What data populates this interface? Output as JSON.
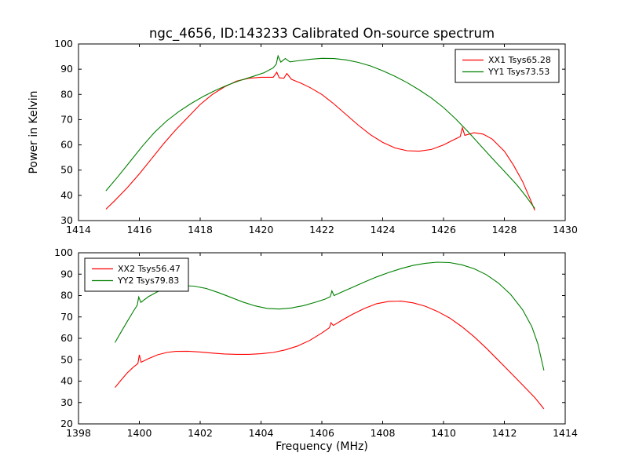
{
  "chart_data": [
    {
      "type": "line",
      "title": "ngc_4656, ID:143233 Calibrated On-source spectrum",
      "xlabel": "",
      "ylabel": "Power in Kelvin",
      "xlim": [
        1414,
        1430
      ],
      "ylim": [
        30,
        100
      ],
      "xticks": [
        1414,
        1416,
        1418,
        1420,
        1422,
        1424,
        1426,
        1428,
        1430
      ],
      "yticks": [
        30,
        40,
        50,
        60,
        70,
        80,
        90,
        100
      ],
      "grid": false,
      "legend_position": "upper right",
      "series": [
        {
          "name": "XX1 Tsys65.28",
          "color": "#ff0000",
          "points": [
            [
              1414.9,
              34.5
            ],
            [
              1415.2,
              38.0
            ],
            [
              1415.6,
              43.0
            ],
            [
              1416.0,
              48.5
            ],
            [
              1416.4,
              54.5
            ],
            [
              1416.8,
              60.5
            ],
            [
              1417.2,
              66.0
            ],
            [
              1417.6,
              71.0
            ],
            [
              1418.0,
              76.0
            ],
            [
              1418.4,
              80.0
            ],
            [
              1418.8,
              83.0
            ],
            [
              1419.2,
              85.3
            ],
            [
              1419.6,
              86.4
            ],
            [
              1420.0,
              86.8
            ],
            [
              1420.4,
              86.8
            ],
            [
              1420.52,
              88.8
            ],
            [
              1420.6,
              86.6
            ],
            [
              1420.75,
              86.4
            ],
            [
              1420.85,
              88.3
            ],
            [
              1421.0,
              86.0
            ],
            [
              1421.3,
              84.5
            ],
            [
              1421.6,
              82.8
            ],
            [
              1422.0,
              80.0
            ],
            [
              1422.4,
              76.2
            ],
            [
              1422.8,
              72.0
            ],
            [
              1423.2,
              67.8
            ],
            [
              1423.6,
              64.0
            ],
            [
              1424.0,
              61.0
            ],
            [
              1424.4,
              58.8
            ],
            [
              1424.8,
              57.7
            ],
            [
              1425.2,
              57.5
            ],
            [
              1425.6,
              58.2
            ],
            [
              1426.0,
              60.0
            ],
            [
              1426.3,
              61.8
            ],
            [
              1426.55,
              63.3
            ],
            [
              1426.62,
              66.8
            ],
            [
              1426.7,
              63.8
            ],
            [
              1427.0,
              64.8
            ],
            [
              1427.3,
              64.3
            ],
            [
              1427.6,
              62.3
            ],
            [
              1428.0,
              57.5
            ],
            [
              1428.3,
              52.0
            ],
            [
              1428.6,
              45.5
            ],
            [
              1428.85,
              38.5
            ],
            [
              1429.0,
              34.0
            ]
          ]
        },
        {
          "name": "YY1 Tsys73.53",
          "color": "#008000",
          "points": [
            [
              1414.9,
              41.8
            ],
            [
              1415.3,
              47.5
            ],
            [
              1415.7,
              53.5
            ],
            [
              1416.1,
              59.5
            ],
            [
              1416.5,
              65.0
            ],
            [
              1416.9,
              69.5
            ],
            [
              1417.3,
              73.2
            ],
            [
              1417.7,
              76.4
            ],
            [
              1418.1,
              79.2
            ],
            [
              1418.5,
              81.6
            ],
            [
              1418.9,
              83.7
            ],
            [
              1419.3,
              85.5
            ],
            [
              1419.7,
              87.0
            ],
            [
              1420.1,
              88.6
            ],
            [
              1420.4,
              90.5
            ],
            [
              1420.5,
              92.0
            ],
            [
              1420.56,
              95.3
            ],
            [
              1420.65,
              92.8
            ],
            [
              1420.8,
              94.2
            ],
            [
              1420.95,
              92.9
            ],
            [
              1421.2,
              93.3
            ],
            [
              1421.6,
              93.9
            ],
            [
              1422.0,
              94.3
            ],
            [
              1422.4,
              94.2
            ],
            [
              1422.8,
              93.7
            ],
            [
              1423.2,
              92.7
            ],
            [
              1423.6,
              91.3
            ],
            [
              1424.0,
              89.4
            ],
            [
              1424.4,
              87.2
            ],
            [
              1424.8,
              84.7
            ],
            [
              1425.2,
              81.8
            ],
            [
              1425.6,
              78.6
            ],
            [
              1426.0,
              74.8
            ],
            [
              1426.4,
              70.3
            ],
            [
              1426.8,
              65.3
            ],
            [
              1427.2,
              60.0
            ],
            [
              1427.6,
              54.7
            ],
            [
              1428.0,
              49.5
            ],
            [
              1428.4,
              44.3
            ],
            [
              1428.7,
              39.8
            ],
            [
              1429.0,
              34.8
            ]
          ]
        }
      ]
    },
    {
      "type": "line",
      "title": "",
      "xlabel": "Frequency (MHz)",
      "ylabel": "",
      "xlim": [
        1398,
        1414
      ],
      "ylim": [
        20,
        100
      ],
      "xticks": [
        1398,
        1400,
        1402,
        1404,
        1406,
        1408,
        1410,
        1412,
        1414
      ],
      "yticks": [
        20,
        30,
        40,
        50,
        60,
        70,
        80,
        90,
        100
      ],
      "grid": false,
      "legend_position": "upper left",
      "series": [
        {
          "name": "XX2 Tsys56.47",
          "color": "#ff0000",
          "points": [
            [
              1399.2,
              37.0
            ],
            [
              1399.4,
              40.5
            ],
            [
              1399.6,
              43.8
            ],
            [
              1399.8,
              46.5
            ],
            [
              1399.95,
              48.2
            ],
            [
              1400.0,
              52.3
            ],
            [
              1400.06,
              48.8
            ],
            [
              1400.3,
              50.5
            ],
            [
              1400.6,
              52.3
            ],
            [
              1400.9,
              53.4
            ],
            [
              1401.2,
              53.9
            ],
            [
              1401.6,
              54.0
            ],
            [
              1402.0,
              53.6
            ],
            [
              1402.4,
              53.1
            ],
            [
              1402.8,
              52.7
            ],
            [
              1403.2,
              52.5
            ],
            [
              1403.6,
              52.5
            ],
            [
              1404.0,
              52.8
            ],
            [
              1404.4,
              53.4
            ],
            [
              1404.8,
              54.6
            ],
            [
              1405.2,
              56.4
            ],
            [
              1405.6,
              59.0
            ],
            [
              1406.0,
              62.5
            ],
            [
              1406.25,
              65.0
            ],
            [
              1406.3,
              67.3
            ],
            [
              1406.38,
              66.0
            ],
            [
              1406.7,
              68.8
            ],
            [
              1407.0,
              71.2
            ],
            [
              1407.4,
              74.0
            ],
            [
              1407.8,
              76.2
            ],
            [
              1408.2,
              77.3
            ],
            [
              1408.6,
              77.4
            ],
            [
              1409.0,
              76.6
            ],
            [
              1409.4,
              75.0
            ],
            [
              1409.8,
              72.6
            ],
            [
              1410.2,
              69.5
            ],
            [
              1410.6,
              65.5
            ],
            [
              1411.0,
              60.8
            ],
            [
              1411.4,
              55.5
            ],
            [
              1411.8,
              49.8
            ],
            [
              1412.2,
              44.0
            ],
            [
              1412.6,
              38.2
            ],
            [
              1413.0,
              32.3
            ],
            [
              1413.3,
              27.0
            ]
          ]
        },
        {
          "name": "YY2 Tsys79.83",
          "color": "#008000",
          "points": [
            [
              1399.2,
              58.0
            ],
            [
              1399.4,
              63.0
            ],
            [
              1399.6,
              67.8
            ],
            [
              1399.8,
              72.5
            ],
            [
              1399.93,
              75.5
            ],
            [
              1399.98,
              79.3
            ],
            [
              1400.05,
              76.8
            ],
            [
              1400.3,
              79.5
            ],
            [
              1400.6,
              81.8
            ],
            [
              1400.9,
              83.3
            ],
            [
              1401.2,
              84.3
            ],
            [
              1401.5,
              84.6
            ],
            [
              1401.8,
              84.4
            ],
            [
              1402.2,
              83.3
            ],
            [
              1402.6,
              81.4
            ],
            [
              1403.0,
              79.2
            ],
            [
              1403.4,
              77.0
            ],
            [
              1403.8,
              75.2
            ],
            [
              1404.2,
              74.0
            ],
            [
              1404.6,
              73.7
            ],
            [
              1405.0,
              74.2
            ],
            [
              1405.4,
              75.3
            ],
            [
              1405.8,
              76.9
            ],
            [
              1406.1,
              78.3
            ],
            [
              1406.28,
              79.5
            ],
            [
              1406.33,
              82.2
            ],
            [
              1406.4,
              80.0
            ],
            [
              1406.7,
              81.9
            ],
            [
              1407.0,
              83.8
            ],
            [
              1407.4,
              86.3
            ],
            [
              1407.8,
              88.7
            ],
            [
              1408.2,
              90.8
            ],
            [
              1408.6,
              92.6
            ],
            [
              1409.0,
              94.1
            ],
            [
              1409.4,
              95.1
            ],
            [
              1409.8,
              95.6
            ],
            [
              1410.2,
              95.4
            ],
            [
              1410.6,
              94.4
            ],
            [
              1411.0,
              92.6
            ],
            [
              1411.4,
              89.8
            ],
            [
              1411.8,
              85.9
            ],
            [
              1412.2,
              80.6
            ],
            [
              1412.6,
              73.4
            ],
            [
              1412.9,
              65.5
            ],
            [
              1413.1,
              57.5
            ],
            [
              1413.3,
              45.0
            ]
          ]
        }
      ]
    }
  ]
}
